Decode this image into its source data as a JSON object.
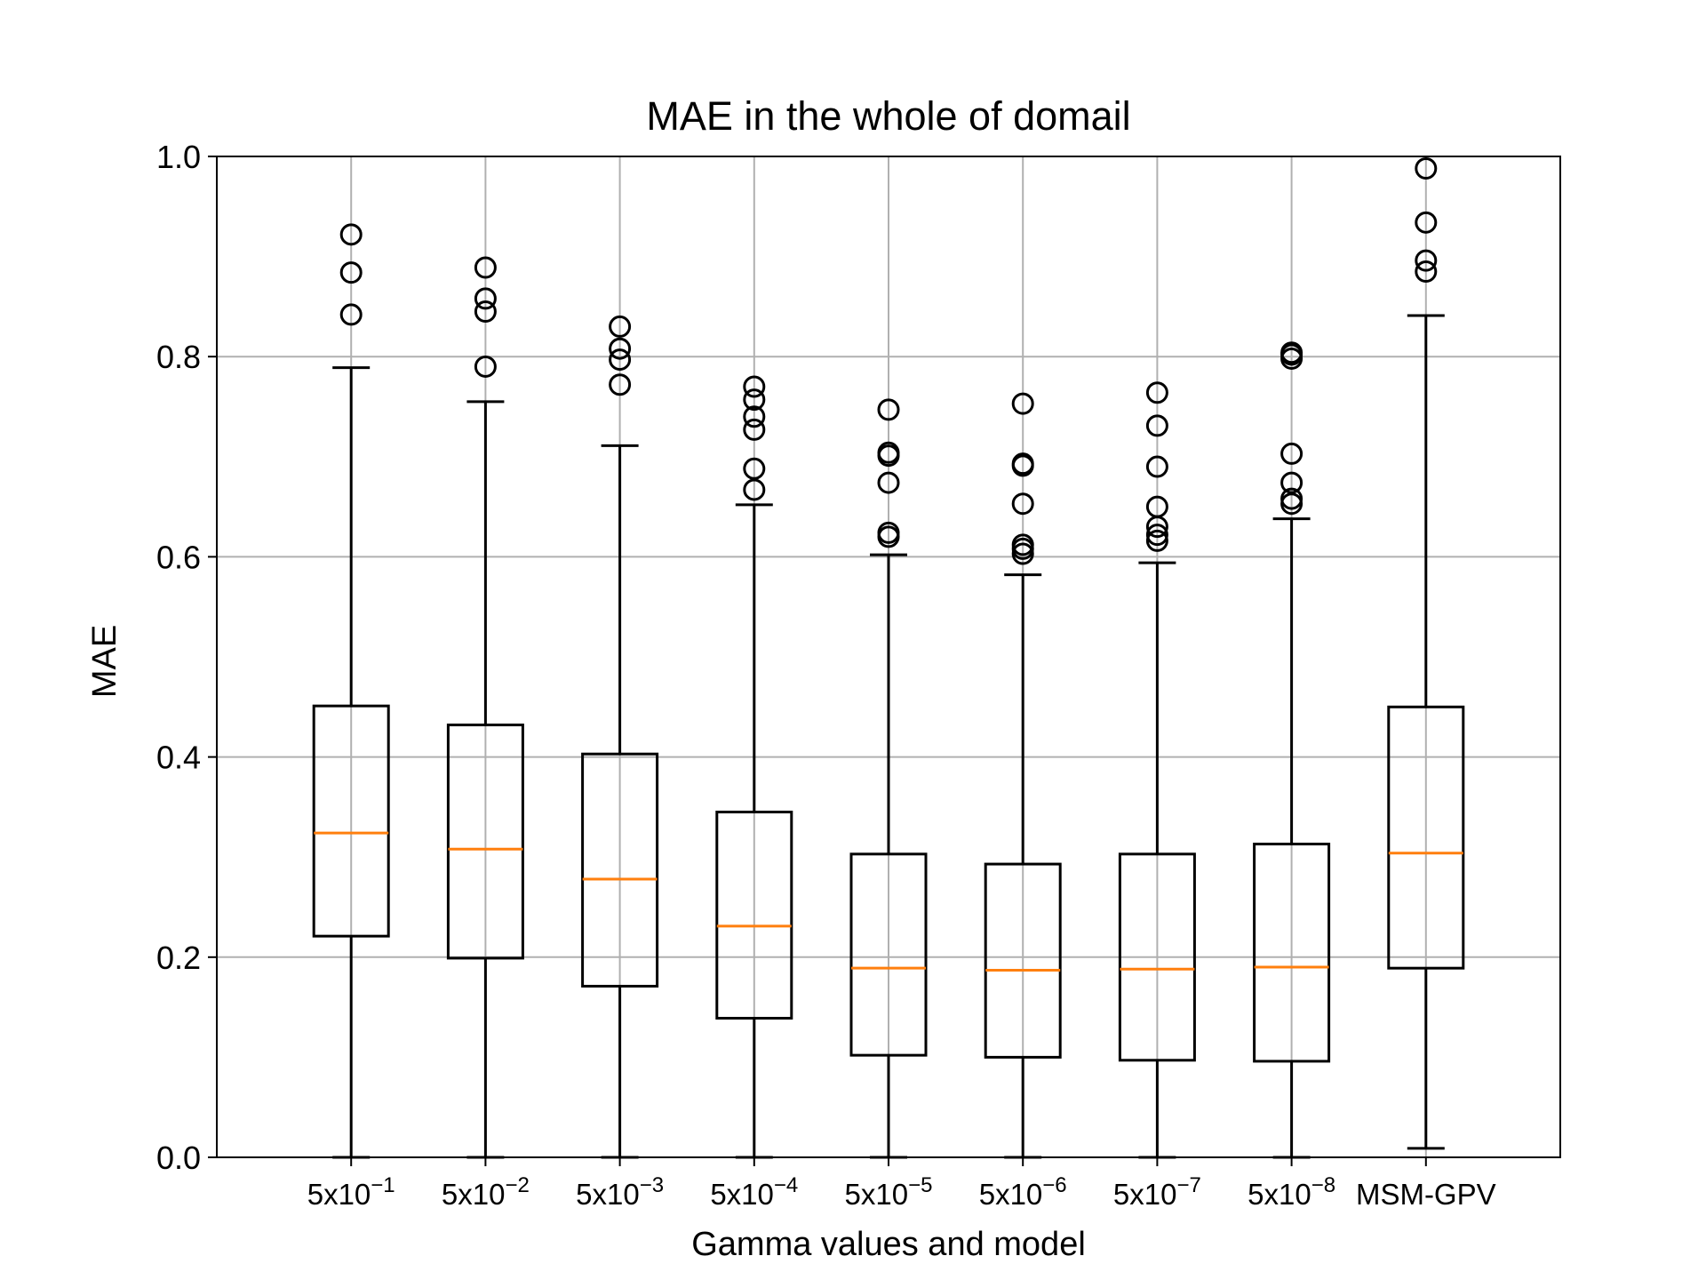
{
  "chart_data": {
    "type": "box",
    "title": "MAE in the whole of domail",
    "xlabel": "Gamma values and model",
    "ylabel": "MAE",
    "ylim": [
      0.0,
      1.0
    ],
    "yticks": [
      "0.0",
      "0.2",
      "0.4",
      "0.6",
      "0.8",
      "1.0"
    ],
    "grid": true,
    "colors": {
      "box": "#000000",
      "median": "#ff7f0e",
      "grid": "#b0b0b0"
    },
    "categories": [
      {
        "base": "5x10",
        "exp": "−1"
      },
      {
        "base": "5x10",
        "exp": "−2"
      },
      {
        "base": "5x10",
        "exp": "−3"
      },
      {
        "base": "5x10",
        "exp": "−4"
      },
      {
        "base": "5x10",
        "exp": "−5"
      },
      {
        "base": "5x10",
        "exp": "−6"
      },
      {
        "base": "5x10",
        "exp": "−7"
      },
      {
        "base": "5x10",
        "exp": "−8"
      },
      {
        "base": "MSM-GPV",
        "exp": ""
      }
    ],
    "boxes": [
      {
        "whislo": 0.0,
        "q1": 0.221,
        "med": 0.324,
        "q3": 0.451,
        "whishi": 0.789,
        "fliers": [
          0.842,
          0.884,
          0.922
        ]
      },
      {
        "whislo": 0.0,
        "q1": 0.199,
        "med": 0.308,
        "q3": 0.432,
        "whishi": 0.755,
        "fliers": [
          0.79,
          0.845,
          0.858,
          0.889
        ]
      },
      {
        "whislo": 0.0,
        "q1": 0.171,
        "med": 0.278,
        "q3": 0.403,
        "whishi": 0.711,
        "fliers": [
          0.772,
          0.797,
          0.808,
          0.83
        ]
      },
      {
        "whislo": 0.0,
        "q1": 0.139,
        "med": 0.231,
        "q3": 0.345,
        "whishi": 0.652,
        "fliers": [
          0.667,
          0.688,
          0.727,
          0.74,
          0.757,
          0.77
        ]
      },
      {
        "whislo": 0.0,
        "q1": 0.102,
        "med": 0.189,
        "q3": 0.303,
        "whishi": 0.602,
        "fliers": [
          0.62,
          0.624,
          0.674,
          0.701,
          0.704,
          0.747
        ]
      },
      {
        "whislo": 0.0,
        "q1": 0.1,
        "med": 0.187,
        "q3": 0.293,
        "whishi": 0.582,
        "fliers": [
          0.603,
          0.608,
          0.612,
          0.653,
          0.691,
          0.693,
          0.753
        ]
      },
      {
        "whislo": 0.0,
        "q1": 0.097,
        "med": 0.188,
        "q3": 0.303,
        "whishi": 0.594,
        "fliers": [
          0.616,
          0.622,
          0.63,
          0.65,
          0.69,
          0.731,
          0.764
        ]
      },
      {
        "whislo": 0.0,
        "q1": 0.096,
        "med": 0.19,
        "q3": 0.313,
        "whishi": 0.638,
        "fliers": [
          0.653,
          0.658,
          0.674,
          0.703,
          0.798,
          0.802,
          0.804
        ]
      },
      {
        "whislo": 0.009,
        "q1": 0.189,
        "med": 0.304,
        "q3": 0.45,
        "whishi": 0.841,
        "fliers": [
          0.885,
          0.896,
          0.934,
          0.988
        ]
      }
    ]
  }
}
